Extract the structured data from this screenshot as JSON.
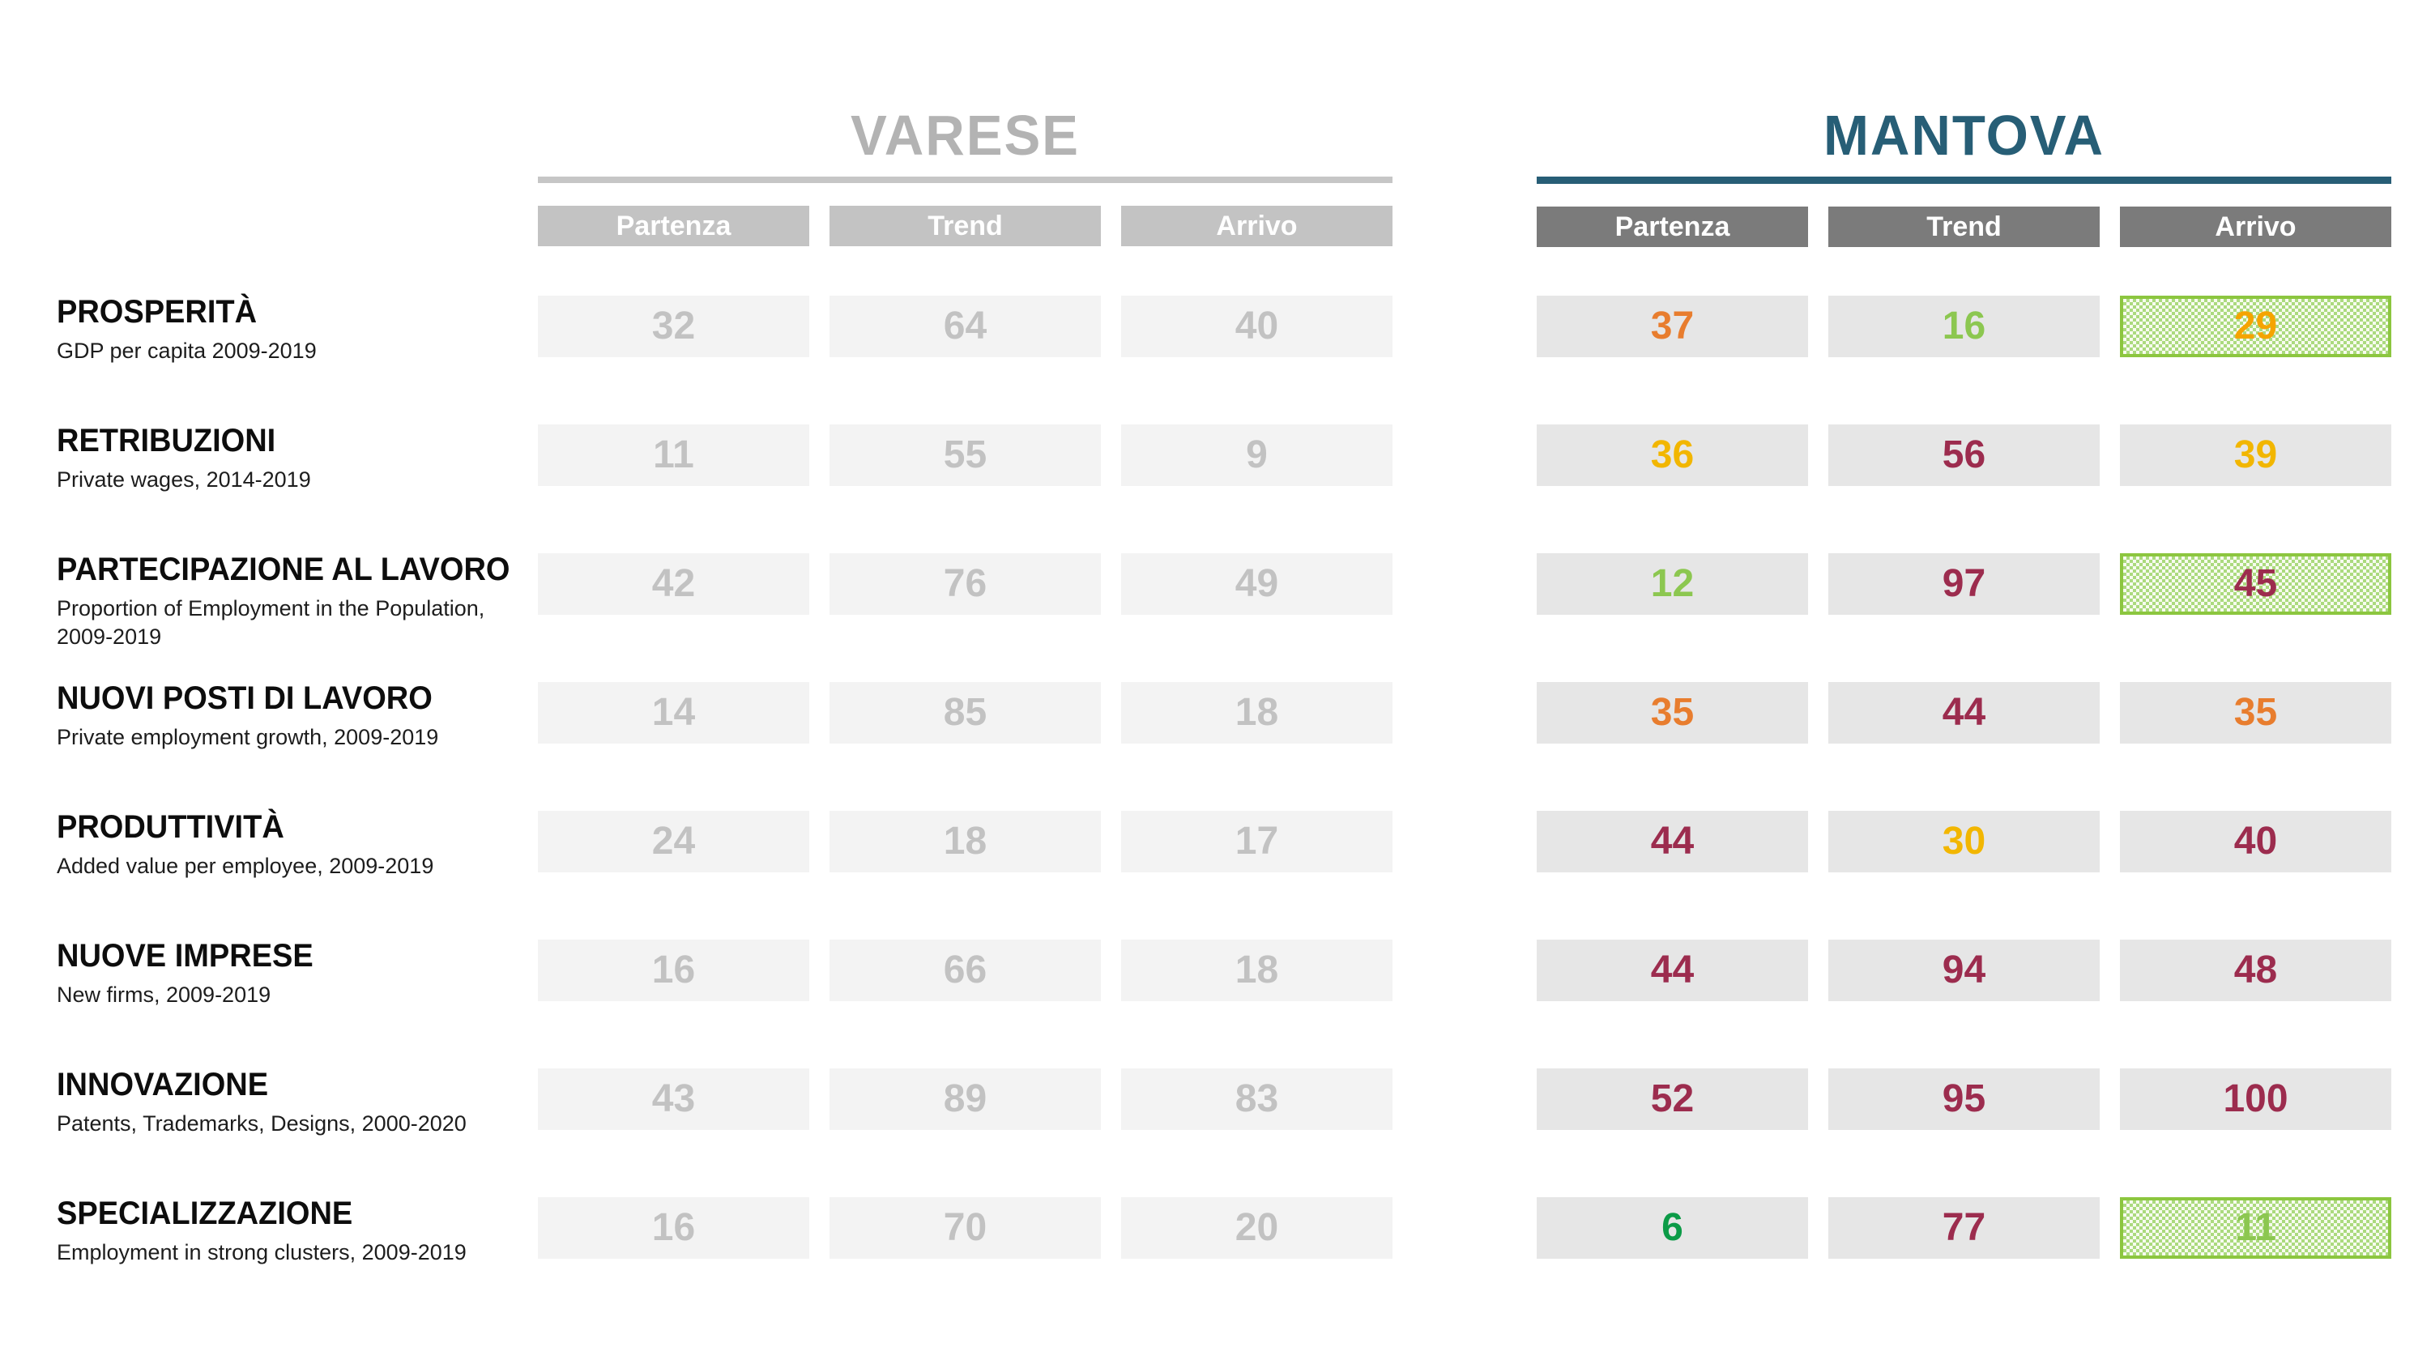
{
  "header": {
    "varese": {
      "title": "VARESE",
      "columns": [
        "Partenza",
        "Trend",
        "Arrivo"
      ]
    },
    "mantova": {
      "title": "MANTOVA",
      "columns": [
        "Partenza",
        "Trend",
        "Arrivo"
      ]
    }
  },
  "colors": {
    "varese_title": "#b3b3b3",
    "varese_underline": "#c6c6c6",
    "varese_column_header_bg": "#c3c3c3",
    "varese_cell_bg": "#f3f3f3",
    "varese_number": "#c2c2c2",
    "mantova_teal": "#275E76",
    "mantova_column_header_bg": "#7b7b7b",
    "mantova_cell_bg": "#e6e6e6",
    "orange": "#E87D2E",
    "light_green": "#8CC750",
    "yellow": "#F2B600",
    "amber": "#F5A400",
    "dark_red": "#9C2C4E",
    "dark_green": "#0C9B47",
    "hatch_green": "#ABDA7E",
    "hatch_border": "#8CC63F"
  },
  "chart_data": {
    "type": "table",
    "title": "",
    "row_headers": [
      {
        "label": "PROSPERITÀ",
        "sublabel": "GDP per capita 2009-2019"
      },
      {
        "label": "RETRIBUZIONI",
        "sublabel": "Private wages, 2014-2019"
      },
      {
        "label": "PARTECIPAZIONE AL LAVORO",
        "sublabel": "Proportion of Employment in the Population, 2009-2019"
      },
      {
        "label": "NUOVI POSTI DI LAVORO",
        "sublabel": "Private employment growth, 2009-2019"
      },
      {
        "label": "PRODUTTIVITÀ",
        "sublabel": "Added value per employee, 2009-2019"
      },
      {
        "label": "NUOVE IMPRESE",
        "sublabel": "New firms, 2009-2019"
      },
      {
        "label": "INNOVAZIONE",
        "sublabel": "Patents, Trademarks, Designs, 2000-2020"
      },
      {
        "label": "SPECIALIZZAZIONE",
        "sublabel": "Employment in strong clusters, 2009-2019"
      }
    ],
    "column_groups": [
      {
        "name": "VARESE",
        "columns": [
          "Partenza",
          "Trend",
          "Arrivo"
        ],
        "style": "inactive-gray",
        "values": [
          [
            32,
            64,
            40
          ],
          [
            11,
            55,
            9
          ],
          [
            42,
            76,
            49
          ],
          [
            14,
            85,
            18
          ],
          [
            24,
            18,
            17
          ],
          [
            16,
            66,
            18
          ],
          [
            43,
            89,
            83
          ],
          [
            16,
            70,
            20
          ]
        ]
      },
      {
        "name": "MANTOVA",
        "columns": [
          "Partenza",
          "Trend",
          "Arrivo"
        ],
        "style": "active-colored",
        "values": [
          [
            37,
            16,
            29
          ],
          [
            36,
            56,
            39
          ],
          [
            12,
            97,
            45
          ],
          [
            35,
            44,
            35
          ],
          [
            44,
            30,
            40
          ],
          [
            44,
            94,
            48
          ],
          [
            52,
            95,
            100
          ],
          [
            6,
            77,
            11
          ]
        ],
        "value_colors": [
          [
            "orange",
            "light-green",
            "amber"
          ],
          [
            "yellow",
            "dark-red",
            "yellow"
          ],
          [
            "light-green",
            "dark-red",
            "dark-red"
          ],
          [
            "orange",
            "dark-red",
            "orange"
          ],
          [
            "dark-red",
            "yellow",
            "dark-red"
          ],
          [
            "dark-red",
            "dark-red",
            "dark-red"
          ],
          [
            "dark-red",
            "dark-red",
            "dark-red"
          ],
          [
            "dark-green",
            "dark-red",
            "light-green"
          ]
        ],
        "hatched_highlight": [
          [
            false,
            false,
            true
          ],
          [
            false,
            false,
            false
          ],
          [
            false,
            false,
            true
          ],
          [
            false,
            false,
            false
          ],
          [
            false,
            false,
            false
          ],
          [
            false,
            false,
            false
          ],
          [
            false,
            false,
            false
          ],
          [
            false,
            false,
            true
          ]
        ]
      }
    ]
  }
}
